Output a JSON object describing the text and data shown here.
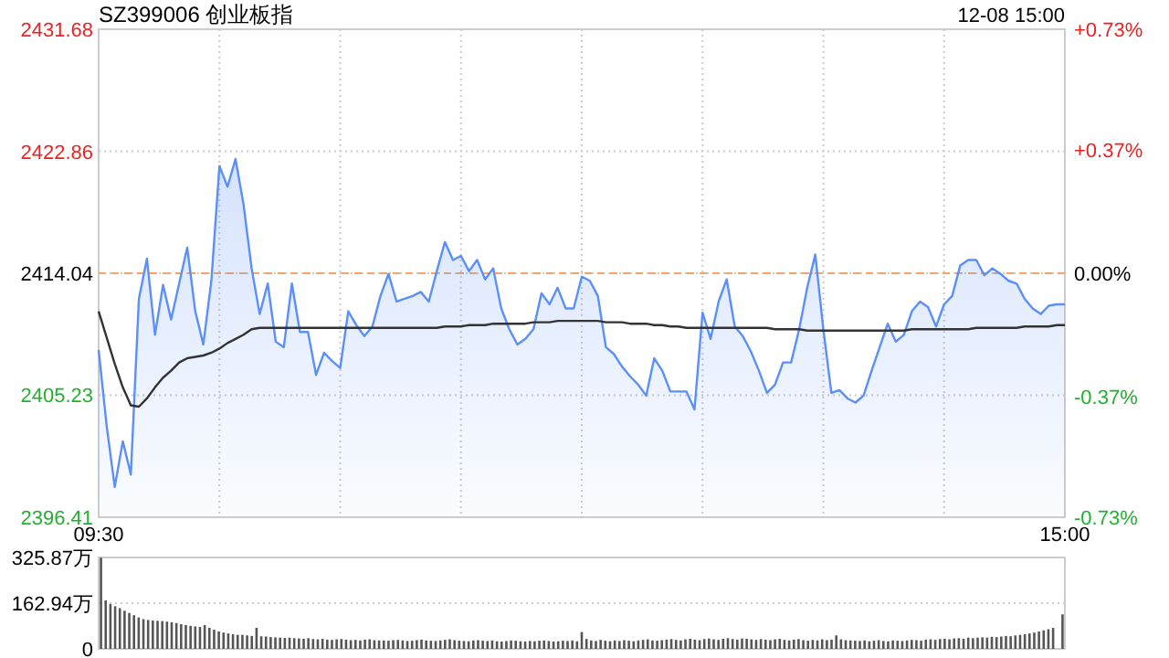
{
  "chart_data": [
    {
      "type": "area",
      "title": "SZ399006 创业板指",
      "annotations": [
        "12-08 15:00"
      ],
      "categories": [
        "09:30",
        null,
        null,
        null,
        null,
        null,
        null,
        null,
        null,
        null,
        null,
        null,
        null,
        null,
        null,
        null,
        null,
        null,
        null,
        null,
        null,
        null,
        null,
        null,
        null,
        null,
        null,
        null,
        null,
        null,
        null,
        null,
        null,
        null,
        null,
        null,
        null,
        null,
        null,
        null,
        null,
        null,
        null,
        null,
        null,
        null,
        null,
        null,
        null,
        null,
        null,
        null,
        null,
        null,
        null,
        null,
        null,
        null,
        null,
        null,
        null,
        null,
        null,
        null,
        null,
        null,
        null,
        null,
        null,
        null,
        null,
        null,
        null,
        null,
        null,
        null,
        null,
        null,
        null,
        null,
        null,
        null,
        null,
        null,
        null,
        null,
        null,
        null,
        null,
        null,
        null,
        null,
        null,
        null,
        null,
        null,
        null,
        null,
        null,
        null,
        null,
        null,
        null,
        null,
        null,
        null,
        null,
        null,
        null,
        null,
        null,
        null,
        null,
        null,
        null,
        null,
        null,
        null,
        null,
        null,
        "15:00"
      ],
      "ylim": [
        2396.41,
        2431.68
      ],
      "yticks": [
        2396.41,
        2405.23,
        2414.04,
        2422.86,
        2431.68
      ],
      "y2lim": [
        -0.73,
        0.73
      ],
      "y2ticks": [
        {
          "value": -0.73,
          "label": "-0.73%"
        },
        {
          "value": -0.37,
          "label": "-0.37%"
        },
        {
          "value": 0,
          "label": "0.00%"
        },
        {
          "value": 0.37,
          "label": "+0.37%"
        },
        {
          "value": 0.73,
          "label": "+0.73%"
        }
      ],
      "grid": true,
      "ref_lines": [
        {
          "axis": "y",
          "value": 2414.04,
          "color": "#f4a46a",
          "line_style": "dashed"
        }
      ],
      "series": [
        {
          "type": "area",
          "color": "#5b8ff9",
          "values": [
            2408.5,
            2403.0,
            2398.6,
            2401.9,
            2399.5,
            2412.2,
            2415.1,
            2409.6,
            2413.2,
            2410.7,
            2413.3,
            2415.9,
            2411.3,
            2408.9,
            2413.5,
            2421.8,
            2420.3,
            2422.3,
            2419.0,
            2414.4,
            2411.1,
            2413.3,
            2409.1,
            2408.7,
            2413.3,
            2409.8,
            2409.8,
            2406.7,
            2408.3,
            2407.7,
            2407.2,
            2411.3,
            2410.3,
            2409.5,
            2410.2,
            2412.4,
            2414.0,
            2412.0,
            2412.2,
            2412.4,
            2412.7,
            2412.0,
            2414.2,
            2416.3,
            2415.0,
            2415.3,
            2414.2,
            2415.0,
            2413.6,
            2414.4,
            2411.5,
            2410.0,
            2408.9,
            2409.3,
            2410.0,
            2412.6,
            2411.8,
            2413.0,
            2411.5,
            2411.5,
            2413.8,
            2413.5,
            2412.4,
            2408.7,
            2408.2,
            2407.3,
            2406.6,
            2406.0,
            2405.2,
            2407.9,
            2407.0,
            2405.5,
            2405.5,
            2405.5,
            2404.2,
            2411.2,
            2409.3,
            2412.0,
            2413.6,
            2410.2,
            2409.5,
            2408.4,
            2407.0,
            2405.4,
            2406.0,
            2407.6,
            2407.6,
            2410.0,
            2413.0,
            2415.4,
            2410.0,
            2405.4,
            2405.6,
            2405.0,
            2404.7,
            2405.2,
            2407.0,
            2408.7,
            2410.4,
            2409.1,
            2409.6,
            2411.3,
            2412.0,
            2411.6,
            2410.2,
            2411.8,
            2412.4,
            2414.6,
            2415.0,
            2415.0,
            2413.9,
            2414.4,
            2414.0,
            2413.5,
            2413.3,
            2412.2,
            2411.5,
            2411.1,
            2411.7,
            2411.8,
            2411.8
          ]
        },
        {
          "type": "line",
          "color": "#333333",
          "values": [
            2411.3,
            2409.4,
            2407.5,
            2405.8,
            2404.5,
            2404.4,
            2405.0,
            2405.8,
            2406.5,
            2407.0,
            2407.6,
            2407.9,
            2408.0,
            2408.1,
            2408.3,
            2408.6,
            2409.0,
            2409.3,
            2409.6,
            2410.0,
            2410.1,
            2410.1,
            2410.1,
            2410.1,
            2410.1,
            2410.1,
            2410.1,
            2410.1,
            2410.1,
            2410.1,
            2410.1,
            2410.1,
            2410.1,
            2410.1,
            2410.1,
            2410.1,
            2410.1,
            2410.1,
            2410.1,
            2410.1,
            2410.1,
            2410.1,
            2410.1,
            2410.2,
            2410.2,
            2410.2,
            2410.3,
            2410.3,
            2410.3,
            2410.4,
            2410.4,
            2410.4,
            2410.4,
            2410.4,
            2410.5,
            2410.5,
            2410.5,
            2410.6,
            2410.6,
            2410.6,
            2410.6,
            2410.6,
            2410.6,
            2410.5,
            2410.5,
            2410.5,
            2410.4,
            2410.4,
            2410.4,
            2410.3,
            2410.3,
            2410.2,
            2410.2,
            2410.1,
            2410.1,
            2410.1,
            2410.1,
            2410.1,
            2410.1,
            2410.1,
            2410.1,
            2410.1,
            2410.1,
            2410.1,
            2410.0,
            2410.0,
            2410.0,
            2410.0,
            2409.9,
            2409.9,
            2409.9,
            2409.9,
            2409.9,
            2409.9,
            2409.9,
            2409.9,
            2409.9,
            2409.9,
            2409.9,
            2409.9,
            2409.9,
            2410.0,
            2410.0,
            2410.0,
            2410.0,
            2410.0,
            2410.0,
            2410.0,
            2410.0,
            2410.1,
            2410.1,
            2410.1,
            2410.1,
            2410.1,
            2410.1,
            2410.2,
            2410.2,
            2410.2,
            2410.2,
            2410.3,
            2410.3
          ]
        }
      ]
    },
    {
      "type": "bar",
      "categories": [
        null,
        null,
        null,
        null,
        null,
        null,
        null,
        null,
        null,
        null,
        null,
        null,
        null,
        null,
        null,
        null,
        null,
        null,
        null,
        null,
        null,
        null,
        null,
        null,
        null,
        null,
        null,
        null,
        null,
        null,
        null,
        null,
        null,
        null,
        null,
        null,
        null,
        null,
        null,
        null,
        null,
        null,
        null,
        null,
        null,
        null,
        null,
        null,
        null,
        null,
        null,
        null,
        null,
        null,
        null,
        null,
        null,
        null,
        null,
        null,
        null,
        null,
        null,
        null,
        null,
        null,
        null,
        null,
        null,
        null,
        null,
        null,
        null,
        null,
        null,
        null,
        null,
        null,
        null,
        null,
        null,
        null,
        null,
        null,
        null,
        null,
        null,
        null,
        null,
        null,
        null,
        null,
        null,
        null,
        null,
        null,
        null,
        null,
        null,
        null,
        null,
        null,
        null,
        null,
        null,
        null,
        null,
        null,
        null,
        null,
        null,
        null,
        null,
        null,
        null,
        null,
        null,
        null,
        null,
        null,
        null,
        null,
        null,
        null,
        null,
        null,
        null,
        null,
        null,
        null,
        null,
        null,
        null,
        null,
        null,
        null,
        null,
        null,
        null,
        null,
        null,
        null,
        null,
        null,
        null,
        null,
        null,
        null,
        null,
        null,
        null,
        null,
        null,
        null,
        null,
        null,
        null,
        null,
        null,
        null,
        null,
        null,
        null,
        null,
        null,
        null,
        null,
        null,
        null,
        null,
        null,
        null,
        null,
        null,
        null,
        null,
        null,
        null,
        null,
        null,
        null,
        null,
        null,
        null,
        null,
        null,
        null,
        null,
        null,
        null,
        null,
        null,
        null,
        null,
        null,
        null,
        null,
        null,
        null,
        null,
        null,
        null,
        null,
        null,
        null
      ],
      "ylim": [
        0,
        325.87
      ],
      "yticks": [
        0,
        {
          "value": 162.94,
          "label": "162.94万"
        },
        {
          "value": 325.87,
          "label": "325.87万"
        }
      ],
      "grid": "y",
      "tick_labels": "y",
      "color": "#555555",
      "values": [
        325,
        173,
        160,
        152,
        145,
        136,
        128,
        120,
        112,
        106,
        103,
        101,
        100,
        99,
        97,
        95,
        92,
        88,
        85,
        82,
        80,
        78,
        85,
        75,
        68,
        62,
        58,
        55,
        52,
        50,
        50,
        48,
        46,
        75,
        45,
        44,
        42,
        41,
        40,
        39,
        40,
        38,
        37,
        36,
        38,
        35,
        34,
        36,
        33,
        32,
        34,
        35,
        33,
        31,
        32,
        30,
        33,
        34,
        31,
        30,
        30,
        29,
        31,
        32,
        30,
        28,
        29,
        31,
        33,
        30,
        29,
        28,
        30,
        32,
        34,
        31,
        29,
        28,
        27,
        30,
        31,
        29,
        28,
        30,
        27,
        26,
        28,
        30,
        29,
        27,
        26,
        28,
        27,
        29,
        30,
        28,
        26,
        27,
        29,
        28,
        30,
        27,
        60,
        35,
        30,
        28,
        32,
        29,
        27,
        30,
        28,
        31,
        29,
        27,
        30,
        32,
        34,
        30,
        29,
        31,
        33,
        35,
        32,
        30,
        34,
        36,
        33,
        31,
        35,
        37,
        34,
        32,
        36,
        38,
        35,
        33,
        37,
        36,
        34,
        32,
        35,
        33,
        31,
        34,
        36,
        32,
        30,
        33,
        35,
        31,
        29,
        32,
        30,
        34,
        31,
        33,
        48,
        34,
        31,
        30,
        29,
        28,
        30,
        27,
        29,
        31,
        28,
        27,
        30,
        29,
        28,
        30,
        32,
        31,
        29,
        33,
        34,
        32,
        35,
        36,
        34,
        37,
        38,
        36,
        40,
        38,
        40,
        41,
        40,
        43,
        42,
        44,
        46,
        45,
        48,
        50,
        52,
        55,
        58,
        62,
        66,
        70,
        75,
        null,
        123
      ]
    }
  ]
}
